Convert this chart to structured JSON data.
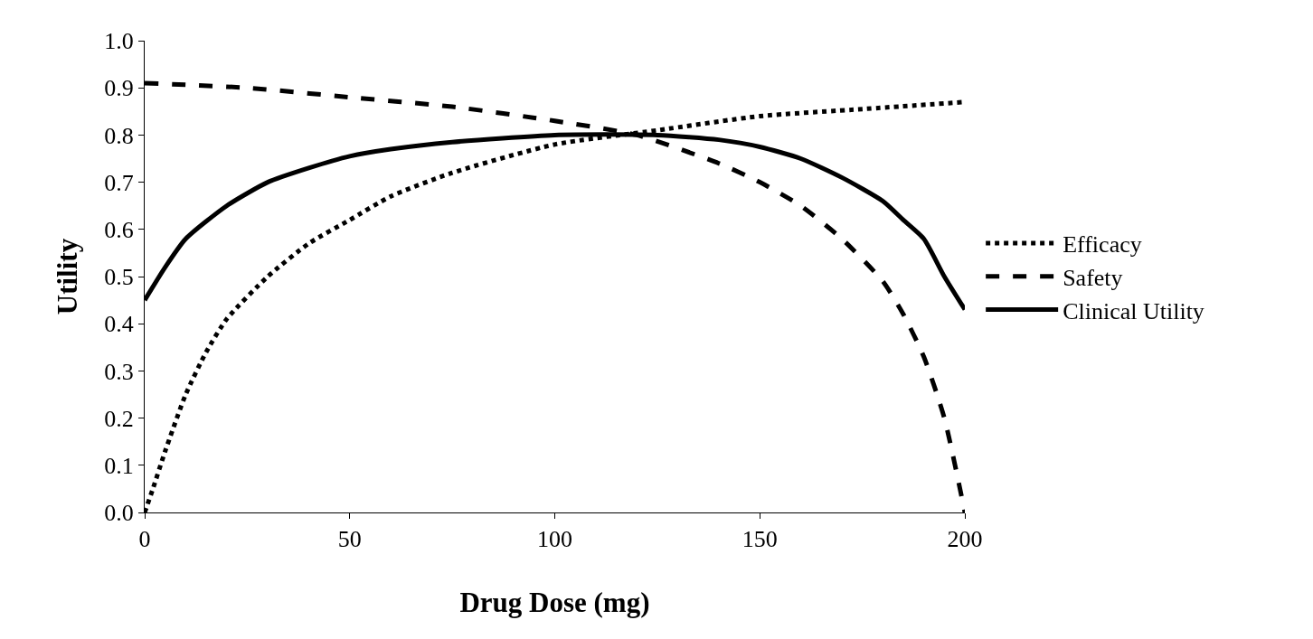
{
  "chart_data": {
    "type": "line",
    "xlabel": "Drug Dose (mg)",
    "ylabel": "Utility",
    "xlim": [
      0,
      200
    ],
    "xticks": [
      0,
      50,
      100,
      150,
      200
    ],
    "ylim": [
      0,
      1
    ],
    "yticks": [
      {
        "value": 0,
        "label": "0.0"
      },
      {
        "value": 0.1,
        "label": "0.1"
      },
      {
        "value": 0.2,
        "label": "0.2"
      },
      {
        "value": 0.3,
        "label": "0.3"
      },
      {
        "value": 0.4,
        "label": "0.4"
      },
      {
        "value": 0.5,
        "label": "0.5"
      },
      {
        "value": 0.6,
        "label": "0.6"
      },
      {
        "value": 0.7,
        "label": "0.7"
      },
      {
        "value": 0.8,
        "label": "0.8"
      },
      {
        "value": 0.9,
        "label": "0.9"
      },
      {
        "value": 1,
        "label": "1.0"
      }
    ],
    "legend": "right",
    "marker": "none",
    "series": [
      {
        "name": "Efficacy",
        "color": "#000000",
        "line_style": "dotted",
        "x": [
          0,
          2,
          5,
          10,
          15,
          20,
          30,
          40,
          50,
          60,
          75,
          100,
          125,
          150,
          175,
          200
        ],
        "values": [
          0,
          0.05,
          0.13,
          0.25,
          0.34,
          0.41,
          0.5,
          0.57,
          0.62,
          0.67,
          0.72,
          0.78,
          0.81,
          0.84,
          0.855,
          0.87
        ]
      },
      {
        "name": "Safety",
        "color": "#000000",
        "line_style": "dashed",
        "x": [
          0,
          25,
          50,
          75,
          100,
          120,
          140,
          150,
          160,
          170,
          180,
          185,
          190,
          195,
          200
        ],
        "values": [
          0.91,
          0.9,
          0.88,
          0.86,
          0.83,
          0.8,
          0.74,
          0.7,
          0.65,
          0.58,
          0.49,
          0.42,
          0.33,
          0.2,
          0
        ]
      },
      {
        "name": "Clinical Utility",
        "color": "#000000",
        "line_style": "solid",
        "x": [
          0,
          5,
          10,
          20,
          30,
          40,
          50,
          60,
          75,
          100,
          125,
          140,
          150,
          160,
          170,
          180,
          185,
          190,
          195,
          200
        ],
        "values": [
          0.45,
          0.52,
          0.58,
          0.65,
          0.7,
          0.73,
          0.755,
          0.77,
          0.785,
          0.8,
          0.8,
          0.79,
          0.775,
          0.75,
          0.71,
          0.66,
          0.62,
          0.58,
          0.5,
          0.43
        ]
      }
    ]
  }
}
